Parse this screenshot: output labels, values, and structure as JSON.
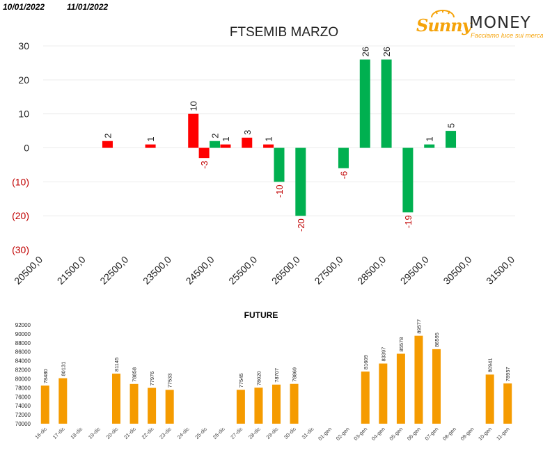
{
  "header": {
    "date_start": "10/01/2022",
    "date_end": "11/01/2022"
  },
  "logo": {
    "brand_script": "Sunny",
    "brand_word": "MONEY",
    "tagline": "Facciamo luce sui mercati"
  },
  "colors": {
    "positive": "#00b050",
    "negative": "#ff0000",
    "future_bar": "#f59b00",
    "negative_label": "#c00000"
  },
  "chart_data": [
    {
      "type": "bar",
      "title": "FTSEMIB MARZO",
      "xlabel": "",
      "ylabel": "",
      "ylim": [
        -30,
        30
      ],
      "yticks": [
        {
          "v": 30,
          "label": "30"
        },
        {
          "v": 20,
          "label": "20"
        },
        {
          "v": 10,
          "label": "10"
        },
        {
          "v": 0,
          "label": "0"
        },
        {
          "v": -10,
          "label": "(10)"
        },
        {
          "v": -20,
          "label": "(20)"
        },
        {
          "v": -30,
          "label": "(30)"
        }
      ],
      "xlim": [
        20500,
        31500
      ],
      "xticks": [
        "20500,0",
        "21500,0",
        "22500,0",
        "23500,0",
        "24500,0",
        "25500,0",
        "26500,0",
        "27500,0",
        "28500,0",
        "29500,0",
        "30500,0",
        "31500,0"
      ],
      "grid": true,
      "legend": "none",
      "bars": [
        {
          "x": 22000,
          "value": 2,
          "series": "red"
        },
        {
          "x": 23000,
          "value": 1,
          "series": "red"
        },
        {
          "x": 24000,
          "value": 10,
          "series": "red"
        },
        {
          "x": 24250,
          "value": -3,
          "series": "red"
        },
        {
          "x": 24500,
          "value": 2,
          "series": "green"
        },
        {
          "x": 24750,
          "value": 1,
          "series": "red"
        },
        {
          "x": 25250,
          "value": 3,
          "series": "red"
        },
        {
          "x": 25750,
          "value": 1,
          "series": "red"
        },
        {
          "x": 26000,
          "value": -10,
          "series": "green"
        },
        {
          "x": 26500,
          "value": -20,
          "series": "green"
        },
        {
          "x": 27500,
          "value": -6,
          "series": "green"
        },
        {
          "x": 28000,
          "value": 26,
          "series": "green"
        },
        {
          "x": 28500,
          "value": 26,
          "series": "green"
        },
        {
          "x": 29000,
          "value": -19,
          "series": "green"
        },
        {
          "x": 29500,
          "value": 1,
          "series": "green"
        },
        {
          "x": 30000,
          "value": 5,
          "series": "green"
        }
      ]
    },
    {
      "type": "bar",
      "title": "FUTURE",
      "xlabel": "",
      "ylabel": "",
      "ylim": [
        70000,
        92000
      ],
      "yticks": [
        "92000",
        "90000",
        "88000",
        "86000",
        "84000",
        "82000",
        "80000",
        "78000",
        "76000",
        "74000",
        "72000",
        "70000"
      ],
      "grid": false,
      "legend": "none",
      "categories": [
        "16-dic",
        "17-dic",
        "18-dic",
        "19-dic",
        "20-dic",
        "21-dic",
        "22-dic",
        "23-dic",
        "24-dic",
        "25-dic",
        "26-dic",
        "27-dic",
        "28-dic",
        "29-dic",
        "30-dic",
        "31-dic",
        "01-gen",
        "02-gen",
        "03-gen",
        "04-gen",
        "05-gen",
        "06-gen",
        "07-gen",
        "08-gen",
        "09-gen",
        "10-gen",
        "11-gen"
      ],
      "values": [
        78480,
        80131,
        null,
        null,
        81145,
        78858,
        77976,
        77533,
        null,
        null,
        null,
        77545,
        78020,
        78707,
        78869,
        null,
        null,
        null,
        81609,
        83397,
        85578,
        89577,
        86595,
        null,
        null,
        80941,
        78957
      ],
      "labels": [
        "78480",
        "80131",
        "",
        "",
        "81145",
        "78858",
        "77976",
        "77533",
        "",
        "",
        "",
        "77545",
        "78020",
        "78707",
        "78869",
        "",
        "",
        "",
        "81609",
        "83397",
        "85578",
        "89577",
        "86595",
        "",
        "",
        "80941",
        "78957"
      ]
    }
  ]
}
